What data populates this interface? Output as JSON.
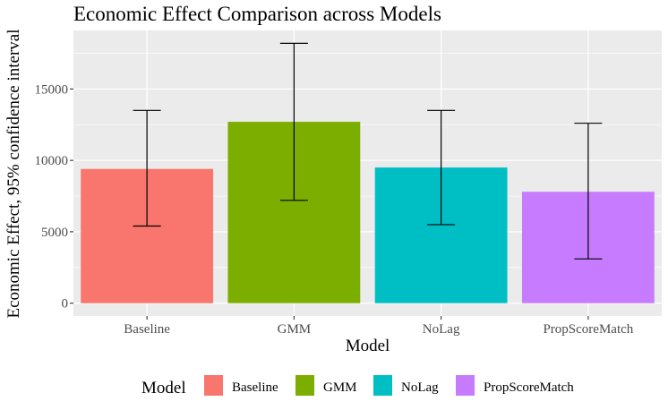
{
  "chart_data": {
    "type": "bar",
    "title": "Economic Effect Comparison across Models",
    "xlabel": "Model",
    "ylabel": "Economic Effect, 95% confidence interval",
    "categories": [
      "Baseline",
      "GMM",
      "NoLag",
      "PropScoreMatch"
    ],
    "values": [
      9400,
      12700,
      9500,
      7800
    ],
    "ci_lower": [
      5400,
      7200,
      5500,
      3100
    ],
    "ci_upper": [
      13500,
      18200,
      13500,
      12600
    ],
    "colors": [
      "#F8766D",
      "#7CAE00",
      "#00BFC4",
      "#C77CFF"
    ],
    "ylim": [
      -900,
      19100
    ],
    "yticks": [
      0,
      5000,
      10000,
      15000
    ],
    "ytick_labels": [
      "0",
      "5000",
      "10000",
      "15000"
    ],
    "grid": true,
    "legend": {
      "title": "Model",
      "position": "bottom",
      "entries": [
        "Baseline",
        "GMM",
        "NoLag",
        "PropScoreMatch"
      ]
    }
  }
}
